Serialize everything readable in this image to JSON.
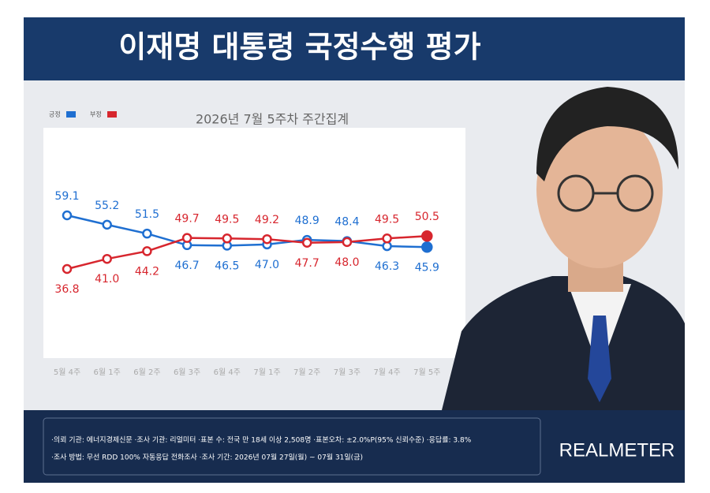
{
  "chart_data": {
    "type": "line",
    "title": "이재명 대통령 국정수행 평가",
    "subtitle": "2026년 7월 5주차 주간집계",
    "categories": [
      "5월 4주",
      "6월 1주",
      "6월 2주",
      "6월 3주",
      "6월 4주",
      "7월 1주",
      "7월 2주",
      "7월 3주",
      "7월 4주",
      "7월 5주"
    ],
    "series": [
      {
        "name": "긍정",
        "color": "#1f6fd1",
        "values": [
          59.1,
          55.2,
          51.5,
          46.7,
          46.5,
          47.0,
          48.9,
          48.4,
          46.3,
          45.9
        ],
        "value_labels": [
          "59.1",
          "55.2",
          "51.5",
          "46.7",
          "46.5",
          "47.0",
          "48.9",
          "48.4",
          "46.3",
          "45.9"
        ]
      },
      {
        "name": "부정",
        "color": "#d7262e",
        "values": [
          36.8,
          41.0,
          44.2,
          49.7,
          49.5,
          49.2,
          47.7,
          48.0,
          49.5,
          50.5
        ],
        "value_labels": [
          "36.8",
          "41.0",
          "44.2",
          "49.7",
          "49.5",
          "49.2",
          "47.7",
          "48.0",
          "49.5",
          "50.5"
        ]
      }
    ],
    "legend": "top-left",
    "notes": [
      "·의뢰 기관: 에너지경제신문 ·조사 기관: 리얼미터 ·표본 수: 전국 만 18세 이상 2,508명 ·표본오차: ±2.0%P(95% 신뢰수준) ·응답률: 3.8%",
      "·조사 방법: 무선 RDD 100% 자동응답 전화조사 ·조사 기간: 2026년 07월 27일(월) ~ 07월 31일(금)"
    ],
    "brand": "REALMETER"
  }
}
